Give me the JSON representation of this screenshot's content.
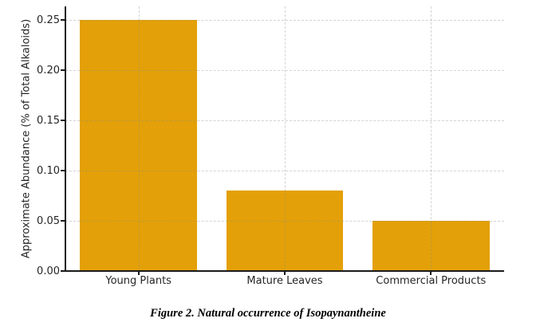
{
  "caption": "Figure 2. Natural occurrence of Isopaynantheine",
  "chart_data": {
    "type": "bar",
    "title": "",
    "categories": [
      "Young Plants",
      "Mature Leaves",
      "Commercial Products"
    ],
    "values": [
      0.25,
      0.08,
      0.05
    ],
    "xlabel": "",
    "ylabel": "Approximate Abundance (% of Total Alkaloids)",
    "ylim": [
      0,
      0.2635
    ],
    "yticks": [
      0,
      0.05,
      0.1,
      0.15,
      0.2,
      0.25
    ],
    "ytick_labels": [
      "0.00",
      "0.05",
      "0.10",
      "0.15",
      "0.20",
      "0.25"
    ],
    "legend": null,
    "grid": true,
    "grid_style": "dashed",
    "bar_color": "#E3A008",
    "axis_color": "#1A1A1A",
    "text_color": "#262626",
    "background_color": "#FFFFFF"
  }
}
